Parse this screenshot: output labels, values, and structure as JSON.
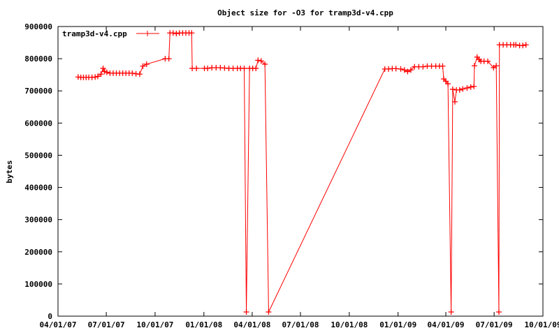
{
  "chart_data": {
    "type": "line",
    "title": "Object size for -O3 for tramp3d-v4.cpp",
    "xlabel": "",
    "ylabel": "bytes",
    "xlim": [
      "2007-04-01",
      "2009-10-01"
    ],
    "ylim": [
      0,
      900000
    ],
    "x_tick_labels": [
      "04/01/07",
      "07/01/07",
      "10/01/07",
      "01/01/08",
      "04/01/08",
      "07/01/08",
      "10/01/08",
      "01/01/09",
      "04/01/09",
      "07/01/09",
      "10/01/09"
    ],
    "x_ticks": [
      "2007-04-01",
      "2007-07-01",
      "2007-10-01",
      "2008-01-01",
      "2008-04-01",
      "2008-07-01",
      "2008-10-01",
      "2009-01-01",
      "2009-04-01",
      "2009-07-01",
      "2009-10-01"
    ],
    "y_ticks": [
      0,
      100000,
      200000,
      300000,
      400000,
      500000,
      600000,
      700000,
      800000,
      900000
    ],
    "y_tick_labels": [
      "0",
      "100000",
      "200000",
      "300000",
      "400000",
      "500000",
      "600000",
      "700000",
      "800000",
      "900000"
    ],
    "grid": false,
    "legend_position": "top-left",
    "series": [
      {
        "name": "tramp3d-v4.cpp",
        "color": "#ff0000",
        "marker": "plus",
        "points": [
          [
            "2007-05-09",
            743000
          ],
          [
            "2007-05-14",
            742000
          ],
          [
            "2007-05-19",
            742000
          ],
          [
            "2007-05-24",
            742000
          ],
          [
            "2007-05-29",
            742000
          ],
          [
            "2007-06-04",
            742000
          ],
          [
            "2007-06-10",
            743000
          ],
          [
            "2007-06-15",
            745000
          ],
          [
            "2007-06-21",
            752000
          ],
          [
            "2007-06-25",
            770000
          ],
          [
            "2007-06-28",
            760000
          ],
          [
            "2007-07-02",
            758000
          ],
          [
            "2007-07-08",
            755000
          ],
          [
            "2007-07-14",
            755000
          ],
          [
            "2007-07-20",
            755000
          ],
          [
            "2007-07-26",
            755000
          ],
          [
            "2007-08-01",
            755000
          ],
          [
            "2007-08-07",
            755000
          ],
          [
            "2007-08-13",
            755000
          ],
          [
            "2007-08-19",
            755000
          ],
          [
            "2007-08-26",
            753000
          ],
          [
            "2007-09-02",
            752000
          ],
          [
            "2007-09-08",
            777000
          ],
          [
            "2007-09-15",
            783000
          ],
          [
            "2007-10-20",
            800000
          ],
          [
            "2007-10-27",
            800000
          ],
          [
            "2007-10-29",
            880000
          ],
          [
            "2007-11-04",
            880000
          ],
          [
            "2007-11-10",
            878000
          ],
          [
            "2007-11-16",
            880000
          ],
          [
            "2007-11-22",
            880000
          ],
          [
            "2007-11-28",
            880000
          ],
          [
            "2007-12-04",
            880000
          ],
          [
            "2007-12-09",
            880000
          ],
          [
            "2007-12-10",
            770000
          ],
          [
            "2007-12-18",
            770000
          ],
          [
            "2008-01-02",
            770000
          ],
          [
            "2008-01-08",
            770000
          ],
          [
            "2008-01-16",
            772000
          ],
          [
            "2008-01-24",
            772000
          ],
          [
            "2008-02-01",
            772000
          ],
          [
            "2008-02-09",
            771000
          ],
          [
            "2008-02-17",
            770000
          ],
          [
            "2008-02-25",
            770000
          ],
          [
            "2008-03-04",
            770000
          ],
          [
            "2008-03-10",
            770000
          ],
          [
            "2008-03-17",
            770000
          ],
          [
            "2008-03-21",
            13000
          ],
          [
            "2008-03-27",
            770000
          ],
          [
            "2008-04-02",
            770000
          ],
          [
            "2008-04-08",
            770000
          ],
          [
            "2008-04-12",
            795000
          ],
          [
            "2008-04-18",
            793000
          ],
          [
            "2008-04-25",
            783000
          ],
          [
            "2008-05-02",
            13000
          ],
          [
            "2008-12-07",
            768000
          ],
          [
            "2008-12-14",
            768000
          ],
          [
            "2008-12-21",
            769000
          ],
          [
            "2008-12-28",
            769000
          ],
          [
            "2009-01-06",
            768000
          ],
          [
            "2009-01-13",
            765000
          ],
          [
            "2009-01-19",
            760000
          ],
          [
            "2009-01-25",
            765000
          ],
          [
            "2009-02-01",
            775000
          ],
          [
            "2009-02-09",
            775000
          ],
          [
            "2009-02-17",
            775000
          ],
          [
            "2009-02-25",
            777000
          ],
          [
            "2009-03-05",
            777000
          ],
          [
            "2009-03-13",
            777000
          ],
          [
            "2009-03-20",
            777000
          ],
          [
            "2009-03-26",
            777000
          ],
          [
            "2009-03-28",
            737000
          ],
          [
            "2009-04-01",
            730000
          ],
          [
            "2009-04-05",
            722000
          ],
          [
            "2009-04-11",
            13000
          ],
          [
            "2009-04-14",
            705000
          ],
          [
            "2009-04-18",
            666000
          ],
          [
            "2009-04-21",
            703000
          ],
          [
            "2009-04-27",
            703000
          ],
          [
            "2009-05-03",
            706000
          ],
          [
            "2009-05-11",
            709000
          ],
          [
            "2009-05-18",
            712000
          ],
          [
            "2009-05-24",
            714000
          ],
          [
            "2009-05-25",
            778000
          ],
          [
            "2009-05-30",
            805000
          ],
          [
            "2009-06-03",
            797000
          ],
          [
            "2009-06-06",
            792000
          ],
          [
            "2009-06-12",
            792000
          ],
          [
            "2009-06-19",
            792000
          ],
          [
            "2009-06-30",
            772000
          ],
          [
            "2009-07-05",
            778000
          ],
          [
            "2009-07-10",
            13000
          ],
          [
            "2009-07-11",
            843000
          ],
          [
            "2009-07-18",
            843000
          ],
          [
            "2009-07-25",
            843000
          ],
          [
            "2009-08-01",
            843000
          ],
          [
            "2009-08-07",
            843000
          ],
          [
            "2009-08-11",
            843000
          ],
          [
            "2009-08-18",
            841000
          ],
          [
            "2009-08-24",
            841000
          ],
          [
            "2009-08-30",
            843000
          ]
        ]
      }
    ]
  }
}
